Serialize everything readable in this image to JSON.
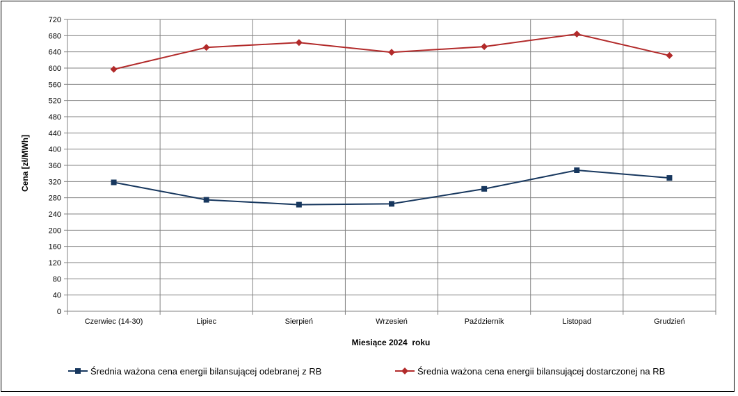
{
  "chart_data": {
    "type": "line",
    "categories": [
      "Czerwiec (14-30)",
      "Lipiec",
      "Sierpień",
      "Wrzesień",
      "Październik",
      "Listopad",
      "Grudzień"
    ],
    "series": [
      {
        "name": "Średnia ważona cena energii bilansującej odebranej z RB",
        "color": "#17375e",
        "marker": "square",
        "values": [
          318,
          275,
          263,
          265,
          302,
          348,
          329
        ]
      },
      {
        "name": "Średnia ważona cena energii bilansującej dostarczonej na RB",
        "color": "#b22a2a",
        "marker": "diamond",
        "values": [
          597,
          651,
          663,
          639,
          653,
          684,
          631
        ]
      }
    ],
    "xlabel": "Miesiące 2024  roku",
    "ylabel": "Cena [zł/MWh]",
    "ylim": [
      0,
      720
    ],
    "ytick_step": 40,
    "grid": true,
    "legend_position": "bottom"
  }
}
